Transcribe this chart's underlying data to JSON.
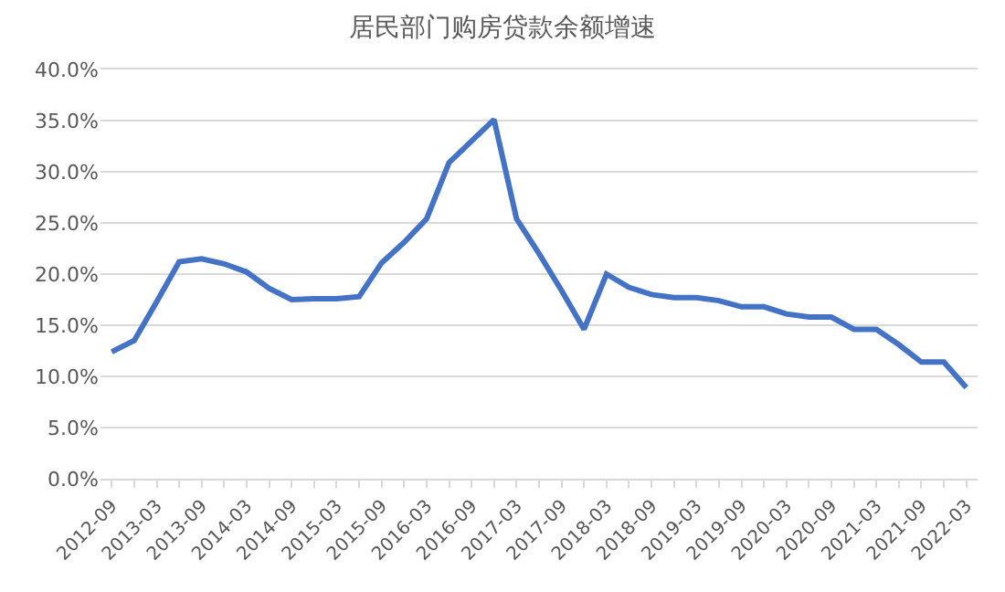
{
  "chart_data": {
    "type": "line",
    "title": "居民部门购房贷款余额增速",
    "categories": [
      "2012-09",
      null,
      "2013-03",
      null,
      "2013-09",
      null,
      "2014-03",
      null,
      "2014-09",
      null,
      "2015-03",
      null,
      "2015-09",
      null,
      "2016-03",
      null,
      "2016-09",
      null,
      "2017-03",
      null,
      "2017-09",
      null,
      "2018-03",
      null,
      "2018-09",
      null,
      "2019-03",
      null,
      "2019-09",
      null,
      "2020-03",
      null,
      "2020-09",
      null,
      "2021-03",
      null,
      "2021-09",
      null,
      "2022-03"
    ],
    "series": [
      {
        "color": "#4472c4",
        "values": [
          12.4,
          13.5,
          17.3,
          21.2,
          21.5,
          21.0,
          20.2,
          18.6,
          17.5,
          17.6,
          17.6,
          17.8,
          21.1,
          23.1,
          25.4,
          30.9,
          33.0,
          35.1,
          25.4,
          22.0,
          18.4,
          14.6,
          20.0,
          18.7,
          18.0,
          17.7,
          17.7,
          17.4,
          16.8,
          16.8,
          16.1,
          15.8,
          15.8,
          14.6,
          14.6,
          13.1,
          11.4,
          11.4,
          8.9
        ]
      }
    ],
    "ylim": [
      0,
      40
    ],
    "yticks": [
      {
        "value": 0,
        "label": "0.0%"
      },
      {
        "value": 5,
        "label": "5.0%"
      },
      {
        "value": 10,
        "label": "10.0%"
      },
      {
        "value": 15,
        "label": "15.0%"
      },
      {
        "value": 20,
        "label": "20.0%"
      },
      {
        "value": 25,
        "label": "25.0%"
      },
      {
        "value": 30,
        "label": "30.0%"
      },
      {
        "value": 35,
        "label": "35.0%"
      },
      {
        "value": 40,
        "label": "40.0%"
      }
    ],
    "grid": "y",
    "marker": "none",
    "line_style": "solid"
  }
}
